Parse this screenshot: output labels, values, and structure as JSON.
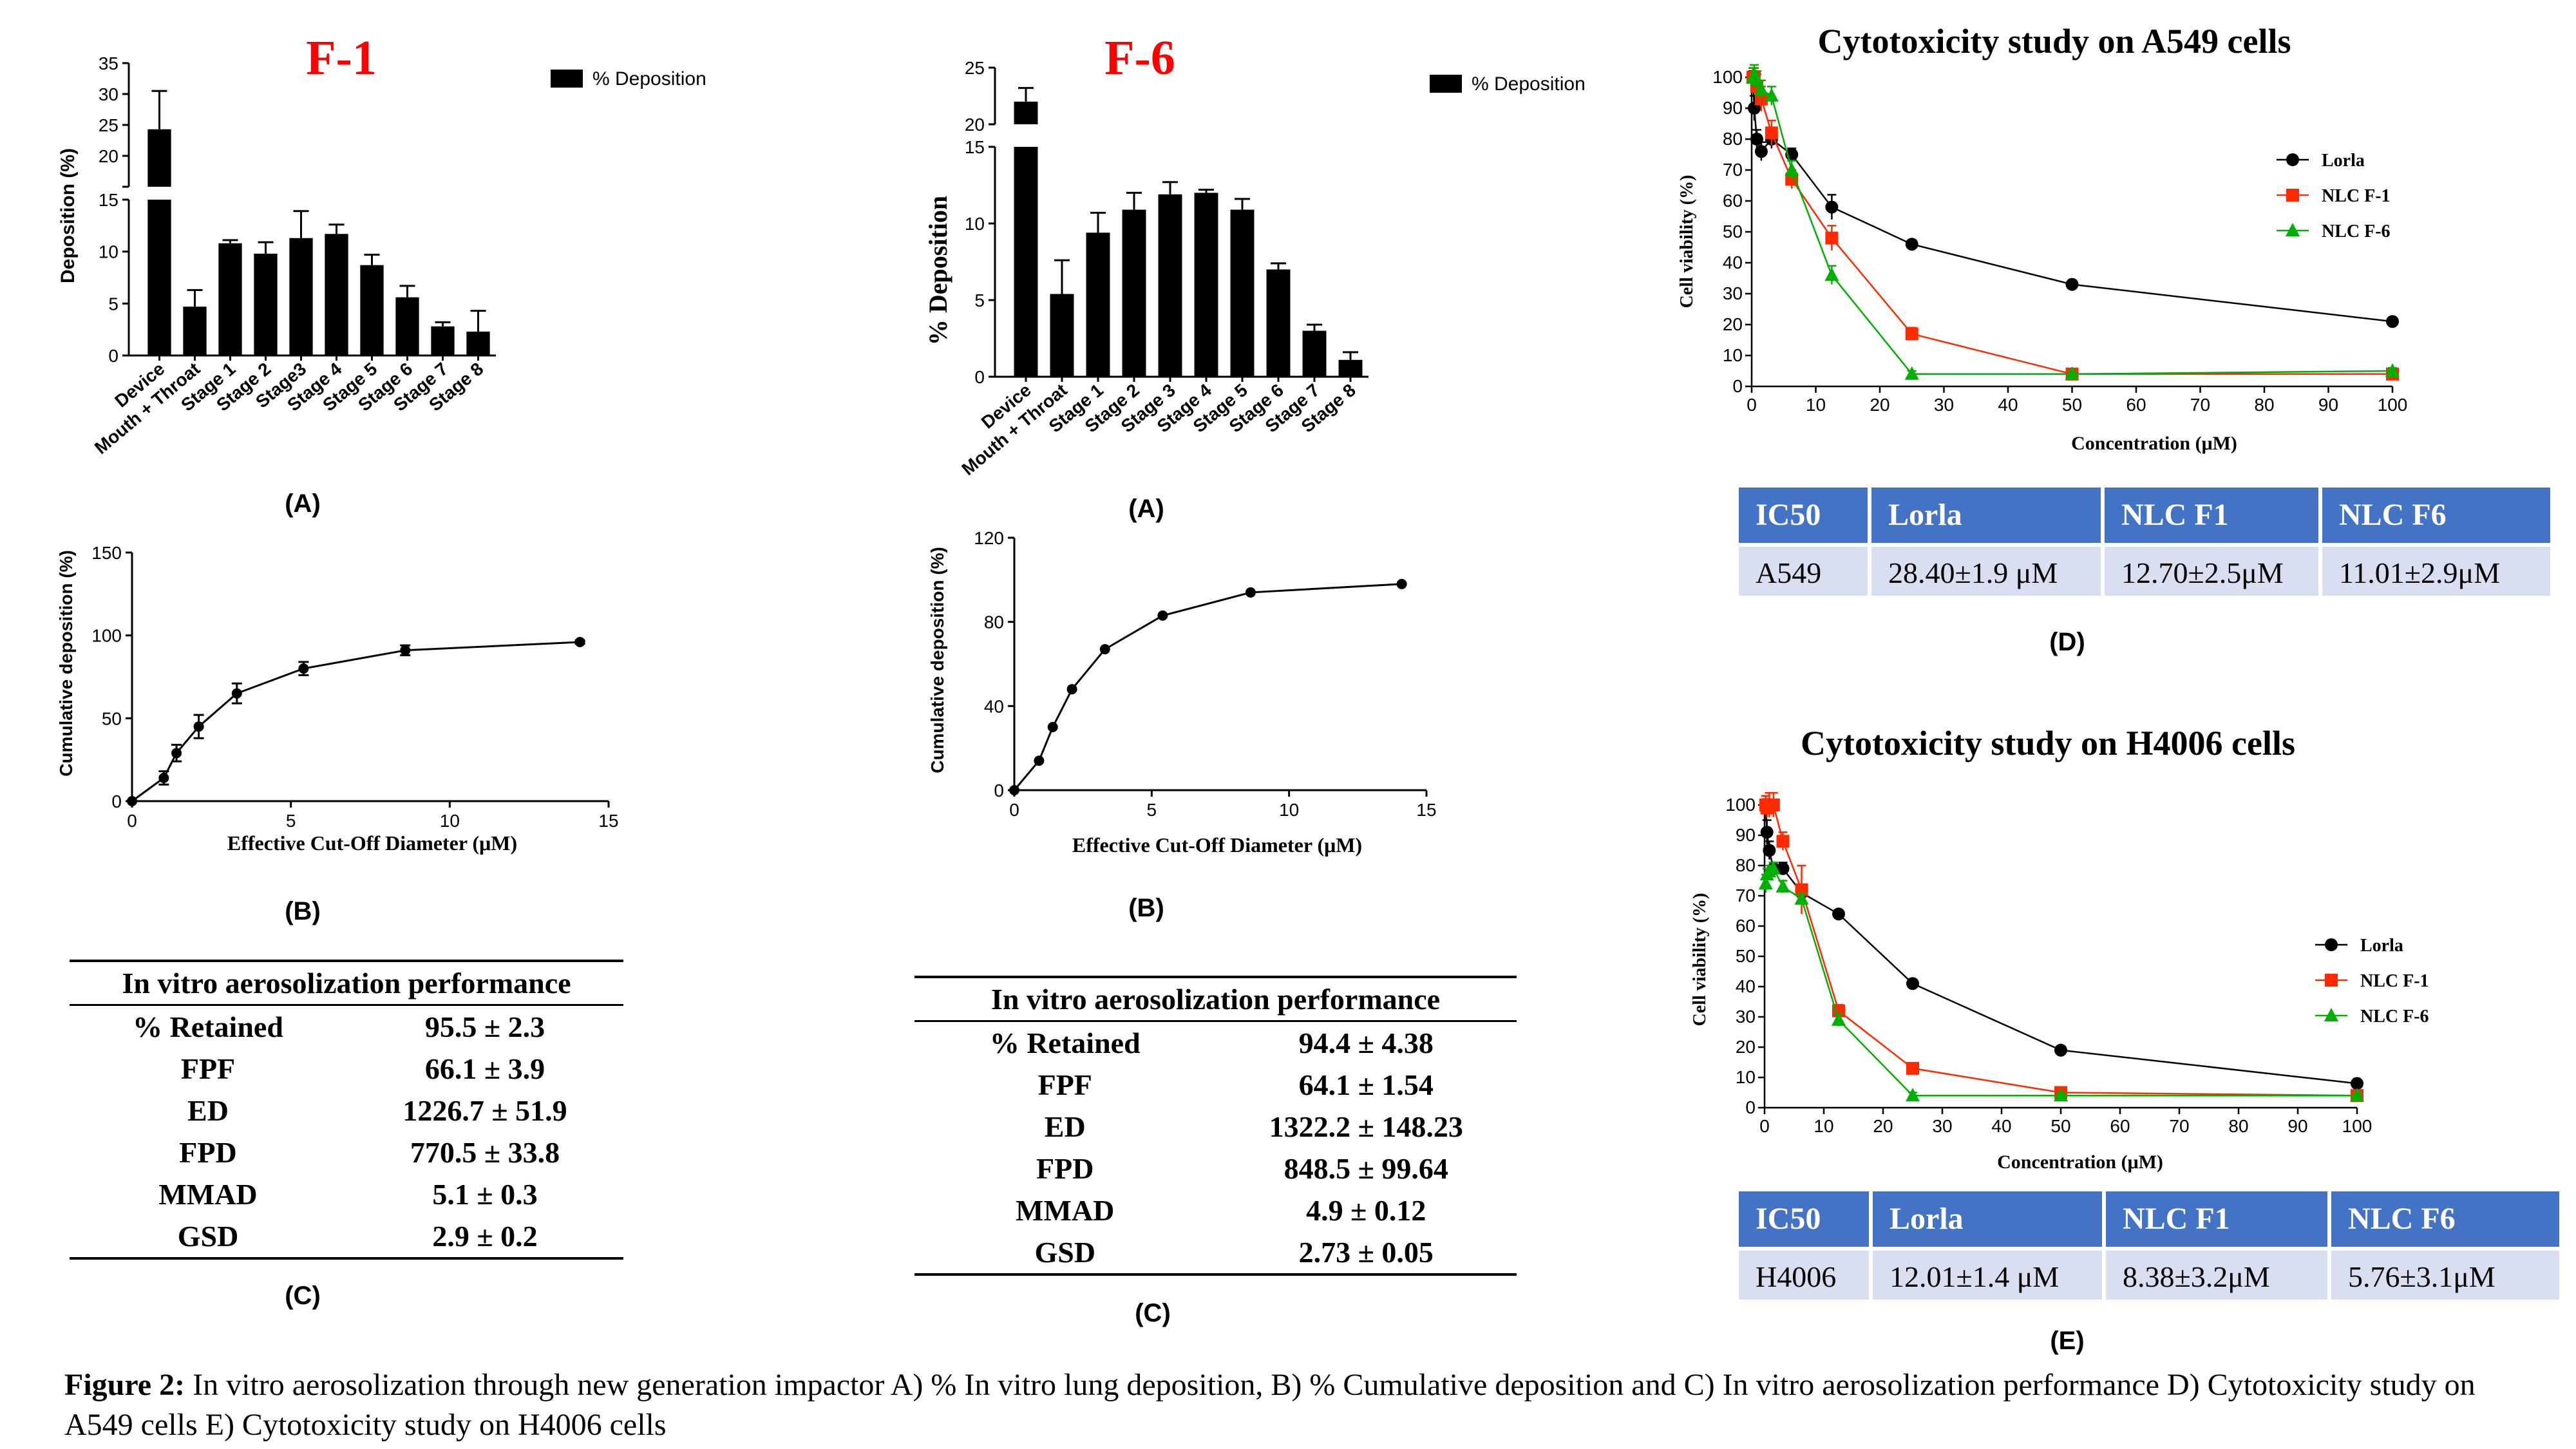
{
  "panels": {
    "f1_bar": {
      "title": "F-1",
      "legend": "% Deposition",
      "ylabel": "Deposition (%)",
      "panel_label": "(A)",
      "colors": {
        "title": "#ff0000",
        "bar": "#000000"
      },
      "chart_data": {
        "type": "bar",
        "ylabel": "Deposition (%)",
        "broken_axis": true,
        "lower_range": [
          0,
          15
        ],
        "upper_range": [
          15,
          35
        ],
        "lower_ticks": [
          0,
          5,
          10,
          15
        ],
        "upper_ticks": [
          15,
          20,
          25,
          30,
          35
        ],
        "categories": [
          "Device",
          "Mouth + Throat",
          "Stage 1",
          "Stage 2",
          "Stage3",
          "Stage 4",
          "Stage 5",
          "Stage 6",
          "Stage 7",
          "Stage 8"
        ],
        "values": [
          24.3,
          4.7,
          10.8,
          9.8,
          11.3,
          11.7,
          8.7,
          5.6,
          2.8,
          2.3
        ],
        "errors": [
          6.2,
          1.6,
          0.3,
          1.1,
          2.6,
          0.9,
          1.0,
          1.1,
          0.4,
          2.0
        ]
      }
    },
    "f6_bar": {
      "title": "F-6",
      "legend": "% Deposition",
      "ylabel": "% Deposition",
      "panel_label": "(A)",
      "colors": {
        "title": "#ff0000",
        "bar": "#000000"
      },
      "chart_data": {
        "type": "bar",
        "ylabel": "% Deposition",
        "broken_axis": true,
        "lower_range": [
          0,
          15
        ],
        "upper_range": [
          20,
          25
        ],
        "lower_ticks": [
          0,
          5,
          10,
          15
        ],
        "upper_ticks": [
          20,
          25
        ],
        "categories": [
          "Device",
          "Mouth + Throat",
          "Stage 1",
          "Stage 2",
          "Stage 3",
          "Stage 4",
          "Stage 5",
          "Stage 6",
          "Stage 7",
          "Stage 8"
        ],
        "values": [
          22.0,
          5.4,
          9.4,
          10.9,
          11.9,
          12.0,
          10.9,
          7.0,
          3.0,
          1.1
        ],
        "errors": [
          1.2,
          2.2,
          1.3,
          1.1,
          0.8,
          0.2,
          0.7,
          0.4,
          0.4,
          0.5
        ]
      }
    },
    "f1_cum": {
      "panel_label": "(B)",
      "chart_data": {
        "type": "line",
        "xlabel": "Effective Cut-Off Diameter (μM)",
        "ylabel": "Cumulative deposition (%)",
        "xlim": [
          0,
          15
        ],
        "ylim": [
          0,
          150
        ],
        "xticks": [
          0,
          5,
          10,
          15
        ],
        "yticks": [
          0,
          50,
          100,
          150
        ],
        "x": [
          0,
          1.0,
          1.4,
          2.1,
          3.3,
          5.4,
          8.6,
          14.1
        ],
        "y": [
          0,
          14,
          29,
          45,
          65,
          80,
          91,
          96
        ],
        "errors": [
          0,
          4,
          5,
          7,
          6,
          4,
          3,
          1
        ]
      }
    },
    "f6_cum": {
      "panel_label": "(B)",
      "chart_data": {
        "type": "line",
        "xlabel": "Effective Cut-Off Diameter (μM)",
        "ylabel": "Cumulative deposition (%)",
        "xlim": [
          0,
          15
        ],
        "ylim": [
          0,
          120
        ],
        "xticks": [
          0,
          5,
          10,
          15
        ],
        "yticks": [
          0,
          40,
          80,
          120
        ],
        "x": [
          0,
          0.9,
          1.4,
          2.1,
          3.3,
          5.4,
          8.6,
          14.1
        ],
        "y": [
          0,
          14,
          30,
          48,
          67,
          83,
          94,
          98
        ]
      }
    },
    "a549": {
      "title": "Cytotoxicity study on A549 cells",
      "panel_label": "(D)",
      "chart_data": {
        "type": "line",
        "xlabel": "Concentration (μM)",
        "ylabel": "Cell viability (%)",
        "xlim": [
          0,
          100
        ],
        "ylim": [
          0,
          100
        ],
        "xticks": [
          0,
          10,
          20,
          30,
          40,
          50,
          60,
          70,
          80,
          90,
          100
        ],
        "yticks": [
          0,
          10,
          20,
          30,
          40,
          50,
          60,
          70,
          80,
          90,
          100
        ],
        "legend_position": "right",
        "series": [
          {
            "name": "Lorla",
            "color": "#000000",
            "marker": "circle",
            "x": [
              0.2,
              0.4,
              0.8,
              1.5,
              3.1,
              6.25,
              12.5,
              25,
              50,
              100
            ],
            "y": [
              100,
              90,
              80,
              76,
              80,
              75,
              58,
              46,
              33,
              21
            ],
            "errors": [
              2,
              4,
              3,
              3,
              3,
              2,
              4,
              1,
              1,
              1
            ]
          },
          {
            "name": "NLC F-1",
            "color": "#ff2a00",
            "marker": "square",
            "x": [
              0.2,
              0.4,
              0.8,
              1.5,
              3.1,
              6.25,
              12.5,
              25,
              50,
              100
            ],
            "y": [
              100,
              100,
              97,
              93,
              82,
              67,
              48,
              17,
              4,
              4
            ],
            "errors": [
              3,
              3,
              4,
              4,
              4,
              3,
              4,
              2,
              1,
              1
            ]
          },
          {
            "name": "NLC F-6",
            "color": "#00b000",
            "marker": "triangle",
            "x": [
              0.2,
              0.4,
              0.8,
              1.5,
              3.1,
              6.25,
              12.5,
              25,
              50,
              100
            ],
            "y": [
              100,
              101,
              99,
              96,
              94,
              70,
              36,
              4,
              4,
              5
            ],
            "errors": [
              3,
              3,
              3,
              3,
              3,
              3,
              3,
              1,
              1,
              1
            ]
          }
        ]
      },
      "ic50_table": {
        "headers": [
          "IC50",
          "Lorla",
          "NLC F1",
          "NLC F6"
        ],
        "row": [
          "A549",
          "28.40±1.9 μM",
          "12.70±2.5μM",
          "11.01±2.9μM"
        ]
      }
    },
    "h4006": {
      "title": "Cytotoxicity study on H4006 cells",
      "panel_label": "(E)",
      "chart_data": {
        "type": "line",
        "xlabel": "Concentration (μM)",
        "ylabel": "Cell viability (%)",
        "xlim": [
          0,
          100
        ],
        "ylim": [
          0,
          100
        ],
        "xticks": [
          0,
          10,
          20,
          30,
          40,
          50,
          60,
          70,
          80,
          90,
          100
        ],
        "yticks": [
          0,
          10,
          20,
          30,
          40,
          50,
          60,
          70,
          80,
          90,
          100
        ],
        "legend_position": "right",
        "series": [
          {
            "name": "Lorla",
            "color": "#000000",
            "marker": "circle",
            "x": [
              0.2,
              0.4,
              0.8,
              1.5,
              3.1,
              6.25,
              12.5,
              25,
              50,
              100
            ],
            "y": [
              100,
              91,
              85,
              79,
              79,
              71,
              64,
              41,
              19,
              8
            ],
            "errors": [
              3,
              4,
              3,
              2,
              2,
              2,
              1,
              1,
              1,
              1
            ]
          },
          {
            "name": "NLC F-1",
            "color": "#ff2a00",
            "marker": "square",
            "x": [
              0.2,
              0.4,
              0.8,
              1.5,
              3.1,
              6.25,
              12.5,
              25,
              50,
              100
            ],
            "y": [
              100,
              99,
              100,
              100,
              88,
              72,
              32,
              13,
              5,
              4
            ],
            "errors": [
              3,
              3,
              4,
              4,
              3,
              8,
              2,
              1,
              1,
              1
            ]
          },
          {
            "name": "NLC F-6",
            "color": "#00b000",
            "marker": "triangle",
            "x": [
              0.2,
              0.4,
              0.8,
              1.5,
              3.1,
              6.25,
              12.5,
              25,
              50,
              100
            ],
            "y": [
              74,
              77,
              78,
              79,
              73,
              69,
              29,
              4,
              4,
              4
            ],
            "errors": [
              3,
              2,
              2,
              2,
              2,
              2,
              2,
              1,
              1,
              1
            ]
          }
        ]
      },
      "ic50_table": {
        "headers": [
          "IC50",
          "Lorla",
          "NLC F1",
          "NLC F6"
        ],
        "row": [
          "H4006",
          "12.01±1.4 μM",
          "8.38±3.2μM",
          "5.76±3.1μM"
        ]
      }
    },
    "f1_aero": {
      "title": "In vitro aerosolization performance",
      "panel_label": "(C)",
      "rows": [
        [
          "% Retained",
          "95.5 ± 2.3"
        ],
        [
          "FPF",
          "66.1 ± 3.9"
        ],
        [
          "ED",
          "1226.7 ± 51.9"
        ],
        [
          "FPD",
          "770.5 ± 33.8"
        ],
        [
          "MMAD",
          "5.1 ± 0.3"
        ],
        [
          "GSD",
          "2.9 ± 0.2"
        ]
      ]
    },
    "f6_aero": {
      "title": "In vitro aerosolization performance",
      "panel_label": "(C)",
      "rows": [
        [
          "% Retained",
          "94.4 ± 4.38"
        ],
        [
          "FPF",
          "64.1 ± 1.54"
        ],
        [
          "ED",
          "1322.2 ± 148.23"
        ],
        [
          "FPD",
          "848.5 ± 99.64"
        ],
        [
          "MMAD",
          "4.9 ± 0.12"
        ],
        [
          "GSD",
          "2.73 ± 0.05"
        ]
      ]
    }
  },
  "caption": {
    "label": "Figure 2:",
    "text": " In vitro aerosolization through new generation impactor A) % In vitro lung deposition, B) % Cumulative deposition and C) In vitro aerosolization performance D) Cytotoxicity study on A549 cells E) Cytotoxicity study on H4006 cells"
  }
}
